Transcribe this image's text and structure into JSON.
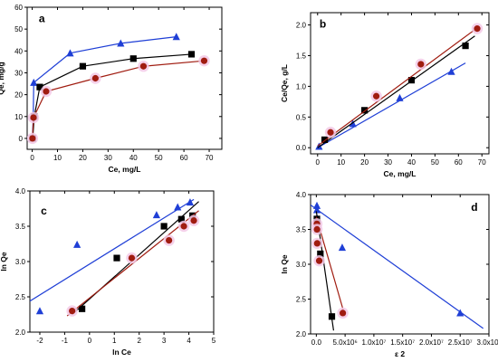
{
  "chart_data": [
    {
      "id": "a",
      "type": "line",
      "panel_label": "a",
      "xlabel": "Ce, mg/L",
      "ylabel": "Qe, mg/g",
      "xlim": [
        -2,
        75
      ],
      "ylim": [
        -5,
        60
      ],
      "xticks": [
        0,
        10,
        20,
        30,
        40,
        50,
        60,
        70
      ],
      "yticks": [
        0,
        10,
        20,
        30,
        40,
        50,
        60
      ],
      "tick_labels_x": [
        "0",
        "10",
        "20",
        "30",
        "40",
        "50",
        "60",
        "70"
      ],
      "tick_labels_y": [
        "0",
        "10",
        "20",
        "30",
        "40",
        "50",
        "60"
      ],
      "series": [
        {
          "color": "#1f3fd6",
          "marker": "triangle",
          "points": [
            [
              0.1,
              0
            ],
            [
              0.4,
              10
            ],
            [
              0.6,
              25.5
            ],
            [
              15,
              39
            ],
            [
              35,
              43.5
            ],
            [
              57,
              46.5
            ]
          ]
        },
        {
          "color": "#000000",
          "marker": "square",
          "points": [
            [
              0.2,
              0
            ],
            [
              0.8,
              10
            ],
            [
              3,
              23.5
            ],
            [
              20,
              33
            ],
            [
              40,
              36.5
            ],
            [
              63,
              38.5
            ]
          ]
        },
        {
          "color": "#a01c10",
          "marker": "circle",
          "points": [
            [
              0.1,
              0
            ],
            [
              0.5,
              9.5
            ],
            [
              5.5,
              21.5
            ],
            [
              25,
              27.5
            ],
            [
              44,
              33
            ],
            [
              68,
              35.5
            ]
          ]
        }
      ]
    },
    {
      "id": "b",
      "type": "scatter",
      "panel_label": "b",
      "xlabel": "Ce, mg/L",
      "ylabel": "Ce/Qe, g/L",
      "xlim": [
        -3,
        73
      ],
      "ylim": [
        -0.1,
        2.2
      ],
      "xticks": [
        0,
        10,
        20,
        30,
        40,
        50,
        60,
        70
      ],
      "yticks": [
        0.0,
        0.5,
        1.0,
        1.5,
        2.0
      ],
      "tick_labels_x": [
        "0",
        "10",
        "20",
        "30",
        "40",
        "50",
        "60",
        "70"
      ],
      "tick_labels_y": [
        "0.0",
        "0.5",
        "1.0",
        "1.5",
        "2.0"
      ],
      "series": [
        {
          "color": "#1f3fd6",
          "marker": "triangle",
          "points": [
            [
              0.6,
              0.02
            ],
            [
              15,
              0.39
            ],
            [
              35,
              0.81
            ],
            [
              57,
              1.24
            ]
          ],
          "fit": [
            [
              0,
              0.0
            ],
            [
              63,
              1.38
            ]
          ]
        },
        {
          "color": "#000000",
          "marker": "square",
          "points": [
            [
              3,
              0.13
            ],
            [
              20,
              0.61
            ],
            [
              40,
              1.1
            ],
            [
              63,
              1.66
            ]
          ],
          "fit": [
            [
              0,
              0.0
            ],
            [
              67,
              1.82
            ]
          ]
        },
        {
          "color": "#a01c10",
          "marker": "circle",
          "points": [
            [
              5.5,
              0.25
            ],
            [
              25,
              0.84
            ],
            [
              44,
              1.36
            ],
            [
              68,
              1.94
            ]
          ],
          "fit": [
            [
              0,
              0.03
            ],
            [
              69,
              1.98
            ]
          ]
        }
      ]
    },
    {
      "id": "c",
      "type": "scatter",
      "panel_label": "c",
      "xlabel": "ln Ce",
      "ylabel": "ln Qe",
      "xlim": [
        -2.4,
        5
      ],
      "ylim": [
        2.0,
        4.0
      ],
      "xticks": [
        -2,
        -1,
        0,
        1,
        2,
        3,
        4,
        5
      ],
      "yticks": [
        2.0,
        2.5,
        3.0,
        3.5,
        4.0
      ],
      "tick_labels_x": [
        "-2",
        "-1",
        "0",
        "1",
        "2",
        "3",
        "4",
        "5"
      ],
      "tick_labels_y": [
        "2.0",
        "2.5",
        "3.0",
        "3.5",
        "4.0"
      ],
      "series": [
        {
          "color": "#1f3fd6",
          "marker": "triangle",
          "points": [
            [
              -2,
              2.3
            ],
            [
              -0.5,
              3.24
            ],
            [
              2.7,
              3.66
            ],
            [
              3.55,
              3.77
            ],
            [
              4.05,
              3.84
            ]
          ],
          "fit": [
            [
              -2.4,
              2.44
            ],
            [
              4.2,
              3.88
            ]
          ]
        },
        {
          "color": "#000000",
          "marker": "square",
          "points": [
            [
              -0.3,
              2.33
            ],
            [
              1.1,
              3.05
            ],
            [
              3.0,
              3.5
            ],
            [
              3.7,
              3.6
            ],
            [
              4.15,
              3.65
            ]
          ],
          "fit": [
            [
              -0.7,
              2.25
            ],
            [
              4.4,
              3.85
            ]
          ]
        },
        {
          "color": "#a01c10",
          "marker": "circle",
          "points": [
            [
              -0.7,
              2.3
            ],
            [
              1.7,
              3.05
            ],
            [
              3.2,
              3.3
            ],
            [
              3.8,
              3.5
            ],
            [
              4.2,
              3.58
            ]
          ],
          "fit": [
            [
              -0.9,
              2.23
            ],
            [
              4.4,
              3.72
            ]
          ]
        }
      ]
    },
    {
      "id": "d",
      "type": "scatter",
      "panel_label": "d",
      "xlabel": "ε 2",
      "ylabel": "ln Qe",
      "xlim": [
        -1000000,
        30000000
      ],
      "ylim": [
        2.0,
        4.0
      ],
      "xticks": [
        0,
        5000000,
        10000000,
        15000000,
        20000000,
        25000000,
        30000000
      ],
      "yticks": [
        2.0,
        2.5,
        3.0,
        3.5,
        4.0
      ],
      "tick_labels_x": [
        "0.0",
        "5.0x10⁶",
        "1.0x10⁷",
        "1.5x10⁷",
        "2.0x10⁷",
        "2.5x10⁷",
        "3.0x10⁷"
      ],
      "tick_labels_y": [
        "2.0",
        "2.5",
        "3.0",
        "3.5",
        "4.0"
      ],
      "series": [
        {
          "color": "#1f3fd6",
          "marker": "triangle",
          "points": [
            [
              100000,
              3.84
            ],
            [
              100000,
              3.78
            ],
            [
              120000,
              3.66
            ],
            [
              4500000,
              3.24
            ],
            [
              25000000,
              2.3
            ]
          ],
          "fit": [
            [
              -1000000,
              3.85
            ],
            [
              29000000,
              2.08
            ]
          ]
        },
        {
          "color": "#000000",
          "marker": "square",
          "points": [
            [
              100000,
              3.65
            ],
            [
              150000,
              3.6
            ],
            [
              200000,
              3.5
            ],
            [
              700000,
              3.15
            ],
            [
              2700000,
              2.25
            ]
          ],
          "fit": [
            [
              0,
              3.76
            ],
            [
              3000000,
              2.05
            ]
          ]
        },
        {
          "color": "#a01c10",
          "marker": "circle",
          "points": [
            [
              100000,
              3.58
            ],
            [
              120000,
              3.5
            ],
            [
              150000,
              3.3
            ],
            [
              500000,
              3.05
            ],
            [
              4600000,
              2.3
            ]
          ],
          "fit": [
            [
              0,
              3.68
            ],
            [
              5000000,
              2.25
            ]
          ]
        }
      ]
    }
  ]
}
